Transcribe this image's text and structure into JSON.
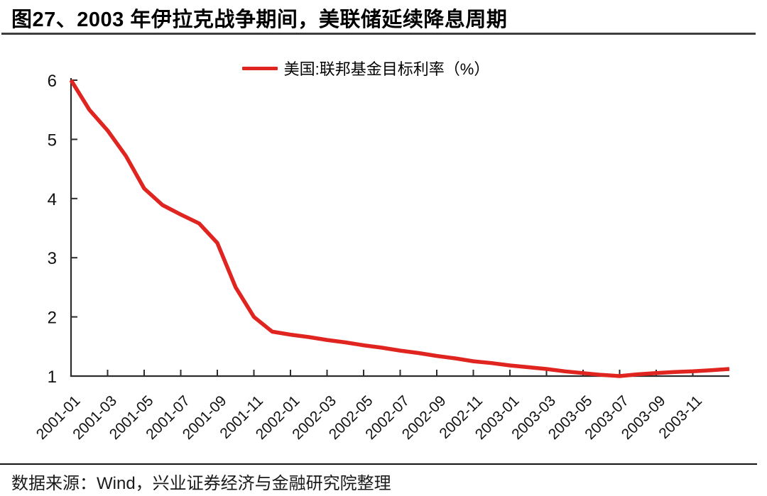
{
  "page": {
    "source": "数据来源：Wind，兴业证券经济与金融研究院整理"
  },
  "chart_data": {
    "type": "line",
    "title": "图27、2003 年伊拉克战争期间，美联储延续降息周期",
    "legend_position": "top-center",
    "grid": false,
    "line_color": "#e02420",
    "axis_color": "#2d2d2d",
    "ylim": [
      1,
      6
    ],
    "yticks": [
      1,
      2,
      3,
      4,
      5,
      6
    ],
    "xtick_labels": [
      "2001-01",
      "2001-03",
      "2001-05",
      "2001-07",
      "2001-09",
      "2001-11",
      "2002-01",
      "2002-03",
      "2002-05",
      "2002-07",
      "2002-09",
      "2002-11",
      "2003-01",
      "2003-03",
      "2003-05",
      "2003-07",
      "2003-09",
      "2003-11"
    ],
    "x": [
      "2001-01",
      "2001-02",
      "2001-03",
      "2001-04",
      "2001-05",
      "2001-06",
      "2001-07",
      "2001-08",
      "2001-09",
      "2001-10",
      "2001-11",
      "2001-12",
      "2002-01",
      "2002-02",
      "2002-03",
      "2002-04",
      "2002-05",
      "2002-06",
      "2002-07",
      "2002-08",
      "2002-09",
      "2002-10",
      "2002-11",
      "2002-12",
      "2003-01",
      "2003-02",
      "2003-03",
      "2003-04",
      "2003-05",
      "2003-06",
      "2003-07",
      "2003-08",
      "2003-09",
      "2003-10",
      "2003-11",
      "2003-12",
      "2004-01"
    ],
    "series": [
      {
        "name": "美国:联邦基金目标利率（%）",
        "values": [
          6.0,
          5.5,
          5.15,
          4.72,
          4.17,
          3.89,
          3.73,
          3.58,
          3.25,
          2.5,
          2.0,
          1.75,
          1.7,
          1.66,
          1.61,
          1.57,
          1.52,
          1.48,
          1.43,
          1.39,
          1.34,
          1.3,
          1.25,
          1.22,
          1.18,
          1.15,
          1.12,
          1.08,
          1.05,
          1.02,
          1.0,
          1.03,
          1.05,
          1.07,
          1.08,
          1.1,
          1.12
        ]
      }
    ]
  }
}
